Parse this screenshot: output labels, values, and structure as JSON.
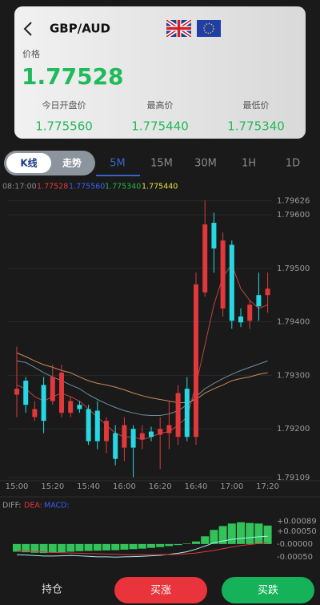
{
  "pair": "GBP/AUD",
  "price_label": "价格",
  "price": "1.77528",
  "stats": [
    {
      "label": "今日开盘价",
      "value": "1.775560"
    },
    {
      "label": "最高价",
      "value": "1.775440"
    },
    {
      "label": "最低价",
      "value": "1.775340"
    }
  ],
  "chart_modes": [
    "K线",
    "走势"
  ],
  "intervals": [
    "5M",
    "15M",
    "30M",
    "1H",
    "1D"
  ],
  "quote_line": {
    "time": "08:17:00",
    "values": [
      "1.77528",
      "1.775560",
      "1.775340",
      "1.775440"
    ]
  },
  "chart_data": [
    {
      "type": "candlestick",
      "categories": [
        "15:00",
        null,
        null,
        null,
        "15:20",
        null,
        null,
        null,
        "15:40",
        null,
        null,
        null,
        "16:00",
        null,
        null,
        null,
        "16:20",
        null,
        null,
        null,
        "16:40",
        null,
        null,
        null,
        "17:00",
        null,
        null,
        null,
        "17:20"
      ],
      "open": [
        1.79264,
        1.7929,
        1.79222,
        1.79282,
        1.79252,
        1.7923,
        1.7923,
        1.79245,
        1.79237,
        1.79234,
        1.79177,
        1.79192,
        1.79165,
        1.792,
        1.7918,
        1.79195,
        1.79189,
        1.79192,
        1.79185,
        1.79275,
        1.79185,
        1.79455,
        1.79585,
        1.79425,
        1.79544,
        1.7941,
        1.79402,
        1.7945,
        1.7945
      ],
      "high": [
        1.79354,
        1.79297,
        1.79252,
        1.79297,
        1.7932,
        1.7932,
        1.7926,
        1.79252,
        1.79245,
        1.79252,
        1.79222,
        1.79207,
        1.79222,
        1.79207,
        1.79207,
        1.79204,
        1.79222,
        1.79252,
        1.79282,
        1.79297,
        1.79492,
        1.79627,
        1.79604,
        1.79567,
        1.79552,
        1.79425,
        1.7944,
        1.79492,
        1.79492
      ],
      "low": [
        1.79222,
        1.7923,
        1.79215,
        1.79192,
        1.79245,
        1.79222,
        1.79222,
        1.7923,
        1.7917,
        1.79162,
        1.79155,
        1.79132,
        1.7914,
        1.7911,
        1.79162,
        1.79177,
        1.79125,
        1.79162,
        1.7917,
        1.79177,
        1.7917,
        1.79447,
        1.79492,
        1.7941,
        1.79387,
        1.7939,
        1.79387,
        1.79402,
        1.79417
      ],
      "close": [
        1.79275,
        1.79245,
        1.79237,
        1.79215,
        1.79297,
        1.79305,
        1.79252,
        1.79237,
        1.79177,
        1.79177,
        1.79215,
        1.79144,
        1.79207,
        1.79165,
        1.79192,
        1.79185,
        1.792,
        1.79207,
        1.79267,
        1.79185,
        1.7947,
        1.79582,
        1.79537,
        1.79552,
        1.79402,
        1.79399,
        1.79432,
        1.79429,
        1.79462
      ],
      "up_color": "#e0383b",
      "down_color": "#27d8e4",
      "lines": [
        {
          "color": "#c98a5a",
          "values": [
            1.79342,
            1.79335,
            1.79327,
            1.7932,
            1.79315,
            1.79309,
            1.79305,
            1.79297,
            1.7929,
            1.79285,
            1.79282,
            1.79278,
            1.79273,
            1.79267,
            1.79262,
            1.79258,
            1.79255,
            1.79252,
            1.79249,
            1.79249,
            1.79255,
            1.79267,
            1.79275,
            1.79282,
            1.7929,
            1.79294,
            1.79297,
            1.79302,
            1.79305
          ]
        },
        {
          "color": "#6f8d9c",
          "values": [
            1.79327,
            1.79324,
            1.79315,
            1.79305,
            1.79297,
            1.7929,
            1.79282,
            1.79275,
            1.79264,
            1.79255,
            1.79247,
            1.7924,
            1.79234,
            1.7923,
            1.79226,
            1.79225,
            1.79225,
            1.79228,
            1.79234,
            1.79245,
            1.7926,
            1.79275,
            1.79285,
            1.79294,
            1.79302,
            1.79309,
            1.79315,
            1.79321,
            1.79327
          ]
        },
        {
          "color": "#b8453f",
          "values": [
            1.79282,
            1.79275,
            1.7926,
            1.79252,
            1.7926,
            1.79267,
            1.7926,
            1.79252,
            1.79237,
            1.79222,
            1.79207,
            1.79192,
            1.79185,
            1.79185,
            1.7918,
            1.79185,
            1.79192,
            1.79195,
            1.79207,
            1.79222,
            1.79282,
            1.79357,
            1.79432,
            1.79484,
            1.79507,
            1.79462,
            1.7944,
            1.79425,
            1.79432
          ]
        }
      ],
      "ylim": [
        1.79103,
        1.79642
      ],
      "yticks": [
        1.79626,
        {
          "value": 1.796,
          "label": "1.79600"
        },
        {
          "value": 1.795,
          "label": "1.79500"
        },
        {
          "value": 1.794,
          "label": "1.79400"
        },
        {
          "value": 1.793,
          "label": "1.79300"
        },
        {
          "value": 1.792,
          "label": "1.79200"
        },
        1.79109
      ],
      "grid": true
    },
    {
      "type": "macd",
      "series": [
        {
          "name": "DIFF:",
          "legend_color": "#9a9a9a",
          "color": "#a8ecec",
          "values": [
            -0.00042,
            -0.00043,
            -0.00045,
            -0.00047,
            -0.00047,
            -0.00046,
            -0.00045,
            -0.00046,
            -0.00048,
            -0.0005,
            -0.0005,
            -0.00051,
            -0.0005,
            -0.00049,
            -0.00048,
            -0.00046,
            -0.00044,
            -0.0004,
            -0.00036,
            -0.0003,
            -0.0002,
            -8e-05,
            5e-05,
            0.00012,
            0.00018,
            0.00022,
            0.00025,
            0.00028,
            0.0003
          ]
        },
        {
          "name": "DEA:",
          "legend_color": "#e0383b",
          "color": "#e0383b",
          "values": [
            -0.00025,
            -0.00027,
            -0.00029,
            -0.00031,
            -0.00033,
            -0.00034,
            -0.00035,
            -0.00036,
            -0.00037,
            -0.00038,
            -0.00039,
            -0.0004,
            -0.00041,
            -0.00042,
            -0.00042,
            -0.00042,
            -0.00042,
            -0.00041,
            -0.0004,
            -0.00038,
            -0.00035,
            -0.0003,
            -0.00025,
            -0.00018,
            -0.00012,
            -6e-05,
            -2e-05,
            2e-05,
            5e-05
          ]
        },
        {
          "name": "MACD:",
          "legend_color": "#3a5cf0",
          "color": "#33c25a",
          "values": [
            -0.0003,
            -0.00032,
            -0.00034,
            -0.00035,
            -0.00034,
            -0.00032,
            -0.0003,
            -0.00028,
            -0.00027,
            -0.00026,
            -0.00025,
            -0.00024,
            -0.00022,
            -0.0002,
            -0.00018,
            -0.00015,
            -0.00012,
            -8e-05,
            -4e-05,
            2e-05,
            0.0001,
            0.0003,
            0.00055,
            0.0007,
            0.0008,
            0.00085,
            0.00082,
            0.0008,
            0.00072
          ]
        }
      ],
      "ylim": [
        -0.00066,
        0.00106
      ],
      "yticks": [
        {
          "value": 0.00089,
          "label": "+0.00089"
        },
        {
          "value": 0.0005,
          "label": "+0.00050"
        },
        {
          "value": 0,
          "label": "-0.00000"
        },
        {
          "value": -0.0005,
          "label": "-0.00050"
        }
      ]
    }
  ],
  "actions": {
    "position": "持仓",
    "buy_up": "买涨",
    "buy_down": "买跌"
  }
}
